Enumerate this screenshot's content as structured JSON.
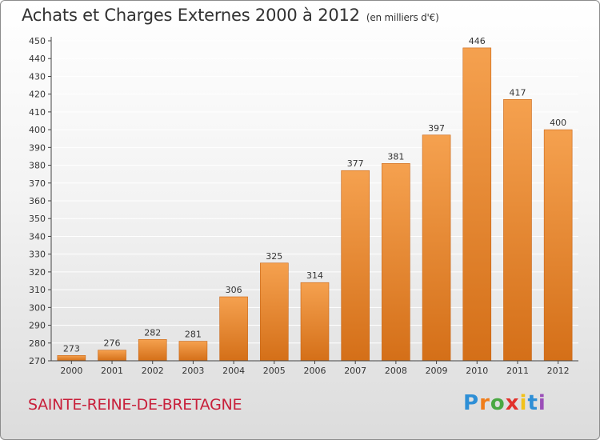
{
  "title": "Achats et Charges Externes 2000 à 2012",
  "title_unit": "(en milliers d'€)",
  "commune": "SAINTE-REINE-DE-BRETAGNE",
  "logo": {
    "letters": [
      "P",
      "r",
      "o",
      "x",
      "i",
      "t",
      "i"
    ]
  },
  "chart_data": {
    "type": "bar",
    "categories": [
      "2000",
      "2001",
      "2002",
      "2003",
      "2004",
      "2005",
      "2006",
      "2007",
      "2008",
      "2009",
      "2010",
      "2011",
      "2012"
    ],
    "values": [
      273,
      276,
      282,
      281,
      306,
      325,
      314,
      377,
      381,
      397,
      446,
      417,
      400
    ],
    "data_labels": [
      "273",
      "276",
      "282",
      "281",
      "306",
      "325",
      "314",
      "377",
      "381",
      "397",
      "446",
      "417",
      "400"
    ],
    "yticks": [
      "270",
      "280",
      "290",
      "300",
      "310",
      "320",
      "330",
      "340",
      "350",
      "360",
      "370",
      "380",
      "390",
      "400",
      "410",
      "420",
      "430",
      "440",
      "450"
    ],
    "ylim": [
      270,
      450
    ],
    "grid": true,
    "colors": {
      "bar_top": "#f5a14f",
      "bar_bottom": "#d46f18",
      "bar_edge": "#c86516",
      "grid": "#ffffff",
      "axis": "#444444"
    }
  }
}
